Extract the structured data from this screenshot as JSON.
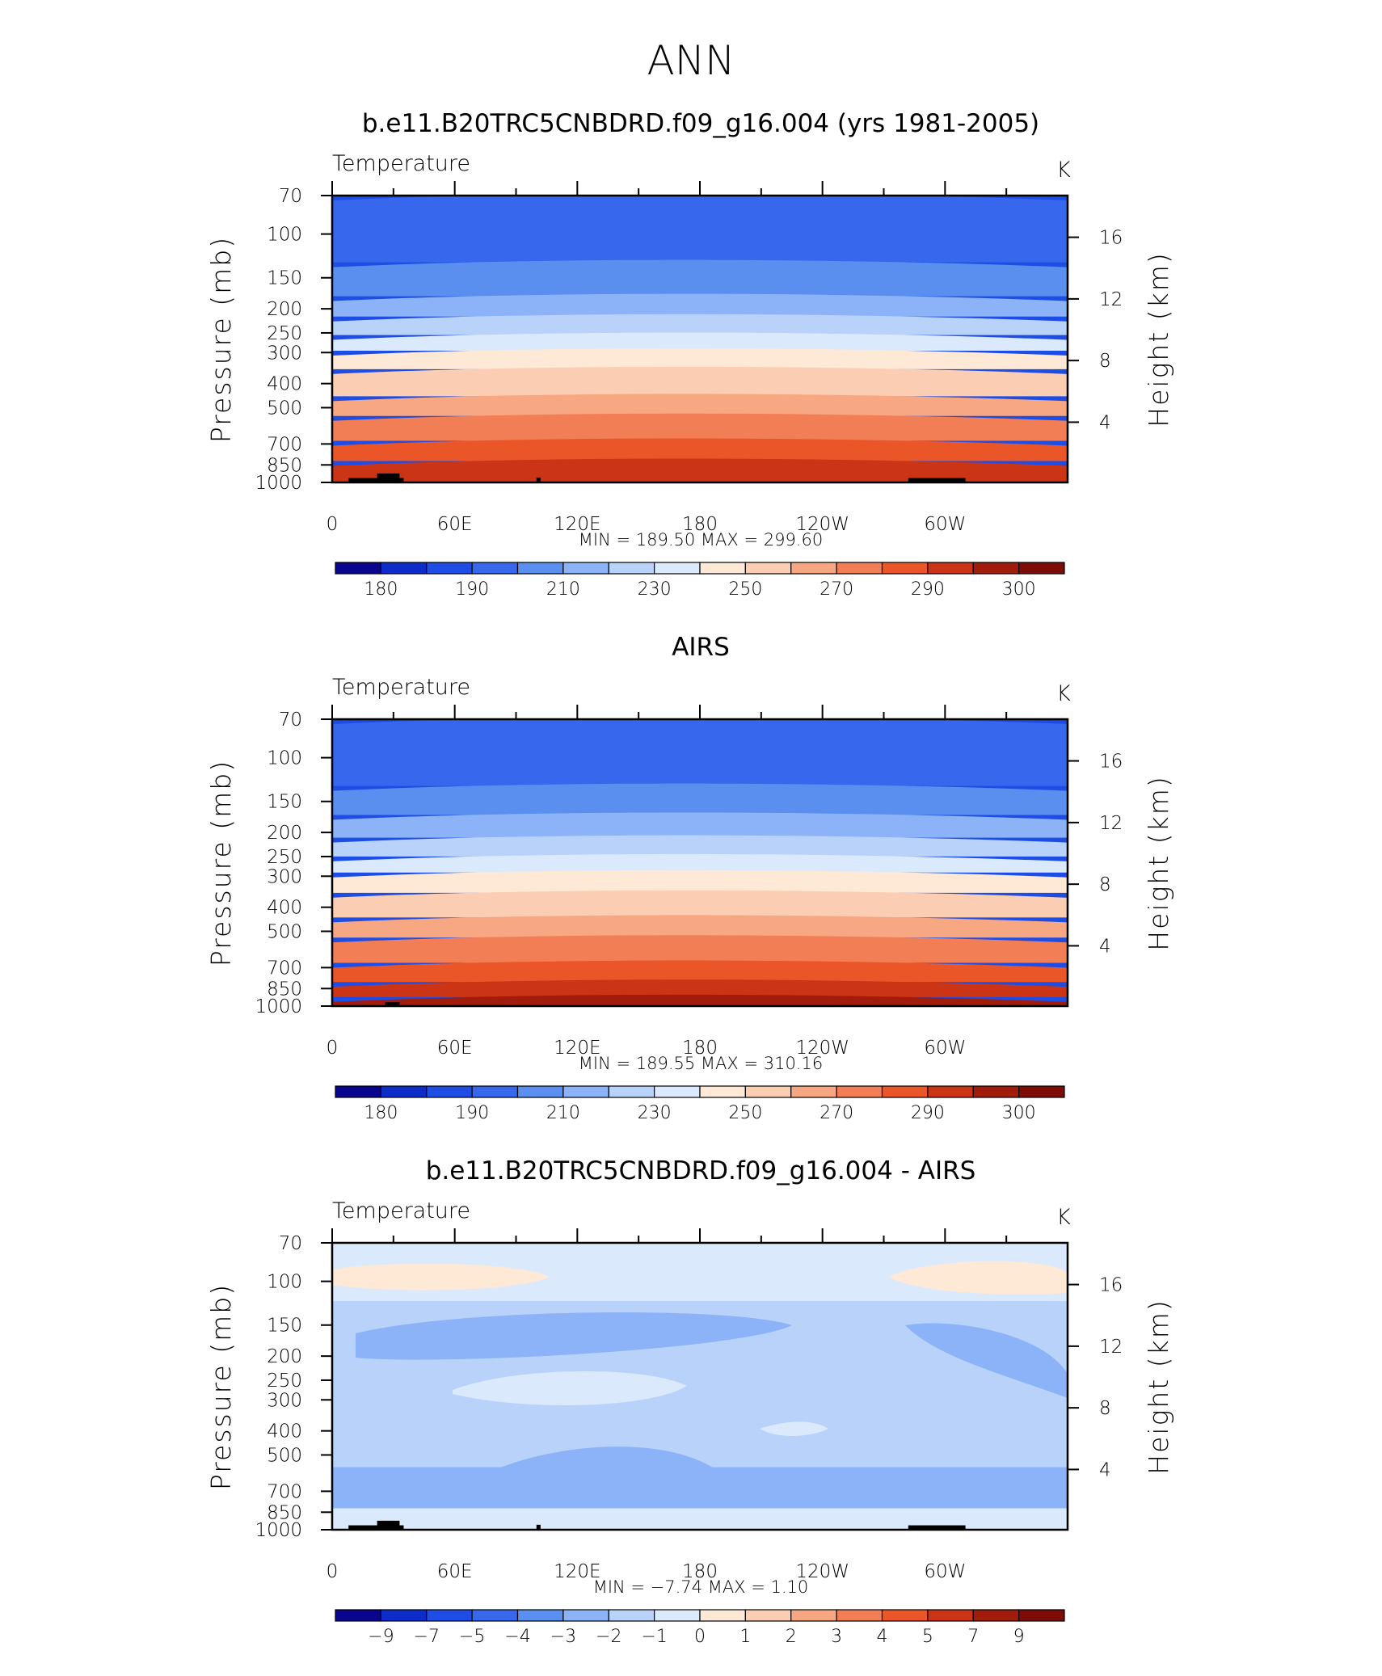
{
  "page_title": "ANN",
  "chart_data": [
    {
      "type": "heatmap",
      "title": "b.e11.B20TRC5CNBDRD.f09_g16.004 (yrs 1981-2005)",
      "subtitle_left": "Temperature",
      "subtitle_right": "K",
      "ylabel": "Pressure (mb)",
      "ylabel_right": "Height (km)",
      "x_ticks": [
        "0",
        "60E",
        "120E",
        "180",
        "120W",
        "60W"
      ],
      "y_ticks": [
        "70",
        "100",
        "150",
        "200",
        "250",
        "300",
        "400",
        "500",
        "700",
        "850",
        "1000"
      ],
      "y_ticks_right": [
        "16",
        "12",
        "8",
        "4"
      ],
      "stats": "MIN =  189.50   MAX =  299.60",
      "colorbar": {
        "labels": [
          "180",
          "190",
          "210",
          "230",
          "250",
          "270",
          "290",
          "300"
        ],
        "colors": [
          "#08068f",
          "#0b2cc8",
          "#1d4de4",
          "#3667ec",
          "#5a8ff0",
          "#8cb3f7",
          "#b9d2fa",
          "#dbe9fd",
          "#fde9d6",
          "#fbcdb2",
          "#f7a883",
          "#f27e55",
          "#ea5628",
          "#cb3414",
          "#a11c0b",
          "#7f0d07"
        ]
      },
      "bands": [
        {
          "p_top": 70,
          "p_bot": 130,
          "level": "190"
        },
        {
          "p_top": 130,
          "p_bot": 178,
          "level": "200"
        },
        {
          "p_top": 178,
          "p_bot": 215,
          "level": "210"
        },
        {
          "p_top": 215,
          "p_bot": 255,
          "level": "220"
        },
        {
          "p_top": 255,
          "p_bot": 295,
          "level": "230"
        },
        {
          "p_top": 295,
          "p_bot": 350,
          "level": "240"
        },
        {
          "p_top": 350,
          "p_bot": 450,
          "level": "250"
        },
        {
          "p_top": 450,
          "p_bot": 540,
          "level": "260"
        },
        {
          "p_top": 540,
          "p_bot": 680,
          "level": "270"
        },
        {
          "p_top": 680,
          "p_bot": 820,
          "level": "280"
        },
        {
          "p_top": 820,
          "p_bot": 1000,
          "level": "290"
        }
      ],
      "terrain": [
        {
          "lon0": 8,
          "lon1": 35,
          "p_top": 960
        },
        {
          "lon0": 22,
          "lon1": 33,
          "p_top": 920
        },
        {
          "lon0": 100,
          "lon1": 102,
          "p_top": 955
        },
        {
          "lon0": 282,
          "lon1": 310,
          "p_top": 960
        }
      ]
    },
    {
      "type": "heatmap",
      "title": "AIRS",
      "subtitle_left": "Temperature",
      "subtitle_right": "K",
      "ylabel": "Pressure (mb)",
      "ylabel_right": "Height (km)",
      "x_ticks": [
        "0",
        "60E",
        "120E",
        "180",
        "120W",
        "60W"
      ],
      "y_ticks": [
        "70",
        "100",
        "150",
        "200",
        "250",
        "300",
        "400",
        "500",
        "700",
        "850",
        "1000"
      ],
      "y_ticks_right": [
        "16",
        "12",
        "8",
        "4"
      ],
      "stats": "MIN =  189.55   MAX =  310.16",
      "colorbar": {
        "labels": [
          "180",
          "190",
          "210",
          "230",
          "250",
          "270",
          "290",
          "300"
        ],
        "colors": [
          "#08068f",
          "#0b2cc8",
          "#1d4de4",
          "#3667ec",
          "#5a8ff0",
          "#8cb3f7",
          "#b9d2fa",
          "#dbe9fd",
          "#fde9d6",
          "#fbcdb2",
          "#f7a883",
          "#f27e55",
          "#ea5628",
          "#cb3414",
          "#a11c0b",
          "#7f0d07"
        ]
      },
      "bands": [
        {
          "p_top": 70,
          "p_bot": 130,
          "level": "190"
        },
        {
          "p_top": 130,
          "p_bot": 170,
          "level": "200"
        },
        {
          "p_top": 170,
          "p_bot": 210,
          "level": "210"
        },
        {
          "p_top": 210,
          "p_bot": 250,
          "level": "220"
        },
        {
          "p_top": 250,
          "p_bot": 290,
          "level": "230"
        },
        {
          "p_top": 290,
          "p_bot": 350,
          "level": "240"
        },
        {
          "p_top": 350,
          "p_bot": 440,
          "level": "250"
        },
        {
          "p_top": 440,
          "p_bot": 530,
          "level": "260"
        },
        {
          "p_top": 530,
          "p_bot": 670,
          "level": "270"
        },
        {
          "p_top": 670,
          "p_bot": 800,
          "level": "280"
        },
        {
          "p_top": 800,
          "p_bot": 920,
          "level": "290"
        },
        {
          "p_top": 920,
          "p_bot": 1000,
          "level": "300"
        }
      ],
      "terrain": [
        {
          "lon0": 26,
          "lon1": 33,
          "p_top": 965
        }
      ]
    },
    {
      "type": "heatmap",
      "title": "b.e11.B20TRC5CNBDRD.f09_g16.004 - AIRS",
      "subtitle_left": "Temperature",
      "subtitle_right": "K",
      "ylabel": "Pressure (mb)",
      "ylabel_right": "Height (km)",
      "x_ticks": [
        "0",
        "60E",
        "120E",
        "180",
        "120W",
        "60W"
      ],
      "y_ticks": [
        "70",
        "100",
        "150",
        "200",
        "250",
        "300",
        "400",
        "500",
        "700",
        "850",
        "1000"
      ],
      "y_ticks_right": [
        "16",
        "12",
        "8",
        "4"
      ],
      "stats": "MIN =    −7.74   MAX =     1.10",
      "colorbar": {
        "labels": [
          "−9",
          "−7",
          "−5",
          "−4",
          "−3",
          "−2",
          "−1",
          "0",
          "1",
          "2",
          "3",
          "4",
          "5",
          "7",
          "9"
        ],
        "colors": [
          "#08068f",
          "#0b2cc8",
          "#1d4de4",
          "#3667ec",
          "#5a8ff0",
          "#8cb3f7",
          "#b9d2fa",
          "#dbe9fd",
          "#fde9d6",
          "#fbcdb2",
          "#f7a883",
          "#f27e55",
          "#ea5628",
          "#cb3414",
          "#a11c0b",
          "#7f0d07"
        ]
      },
      "bands": [
        {
          "p_top": 70,
          "p_bot": 120,
          "level": "-0.5"
        },
        {
          "p_top": 120,
          "p_bot": 200,
          "level": "-1.5"
        },
        {
          "p_top": 200,
          "p_bot": 560,
          "level": "-1.5"
        },
        {
          "p_top": 560,
          "p_bot": 820,
          "level": "-2.5"
        },
        {
          "p_top": 820,
          "p_bot": 1000,
          "level": "-0.5"
        }
      ],
      "terrain": [
        {
          "lon0": 8,
          "lon1": 35,
          "p_top": 960
        },
        {
          "lon0": 22,
          "lon1": 33,
          "p_top": 920
        },
        {
          "lon0": 100,
          "lon1": 102,
          "p_top": 955
        },
        {
          "lon0": 282,
          "lon1": 310,
          "p_top": 960
        }
      ]
    }
  ]
}
